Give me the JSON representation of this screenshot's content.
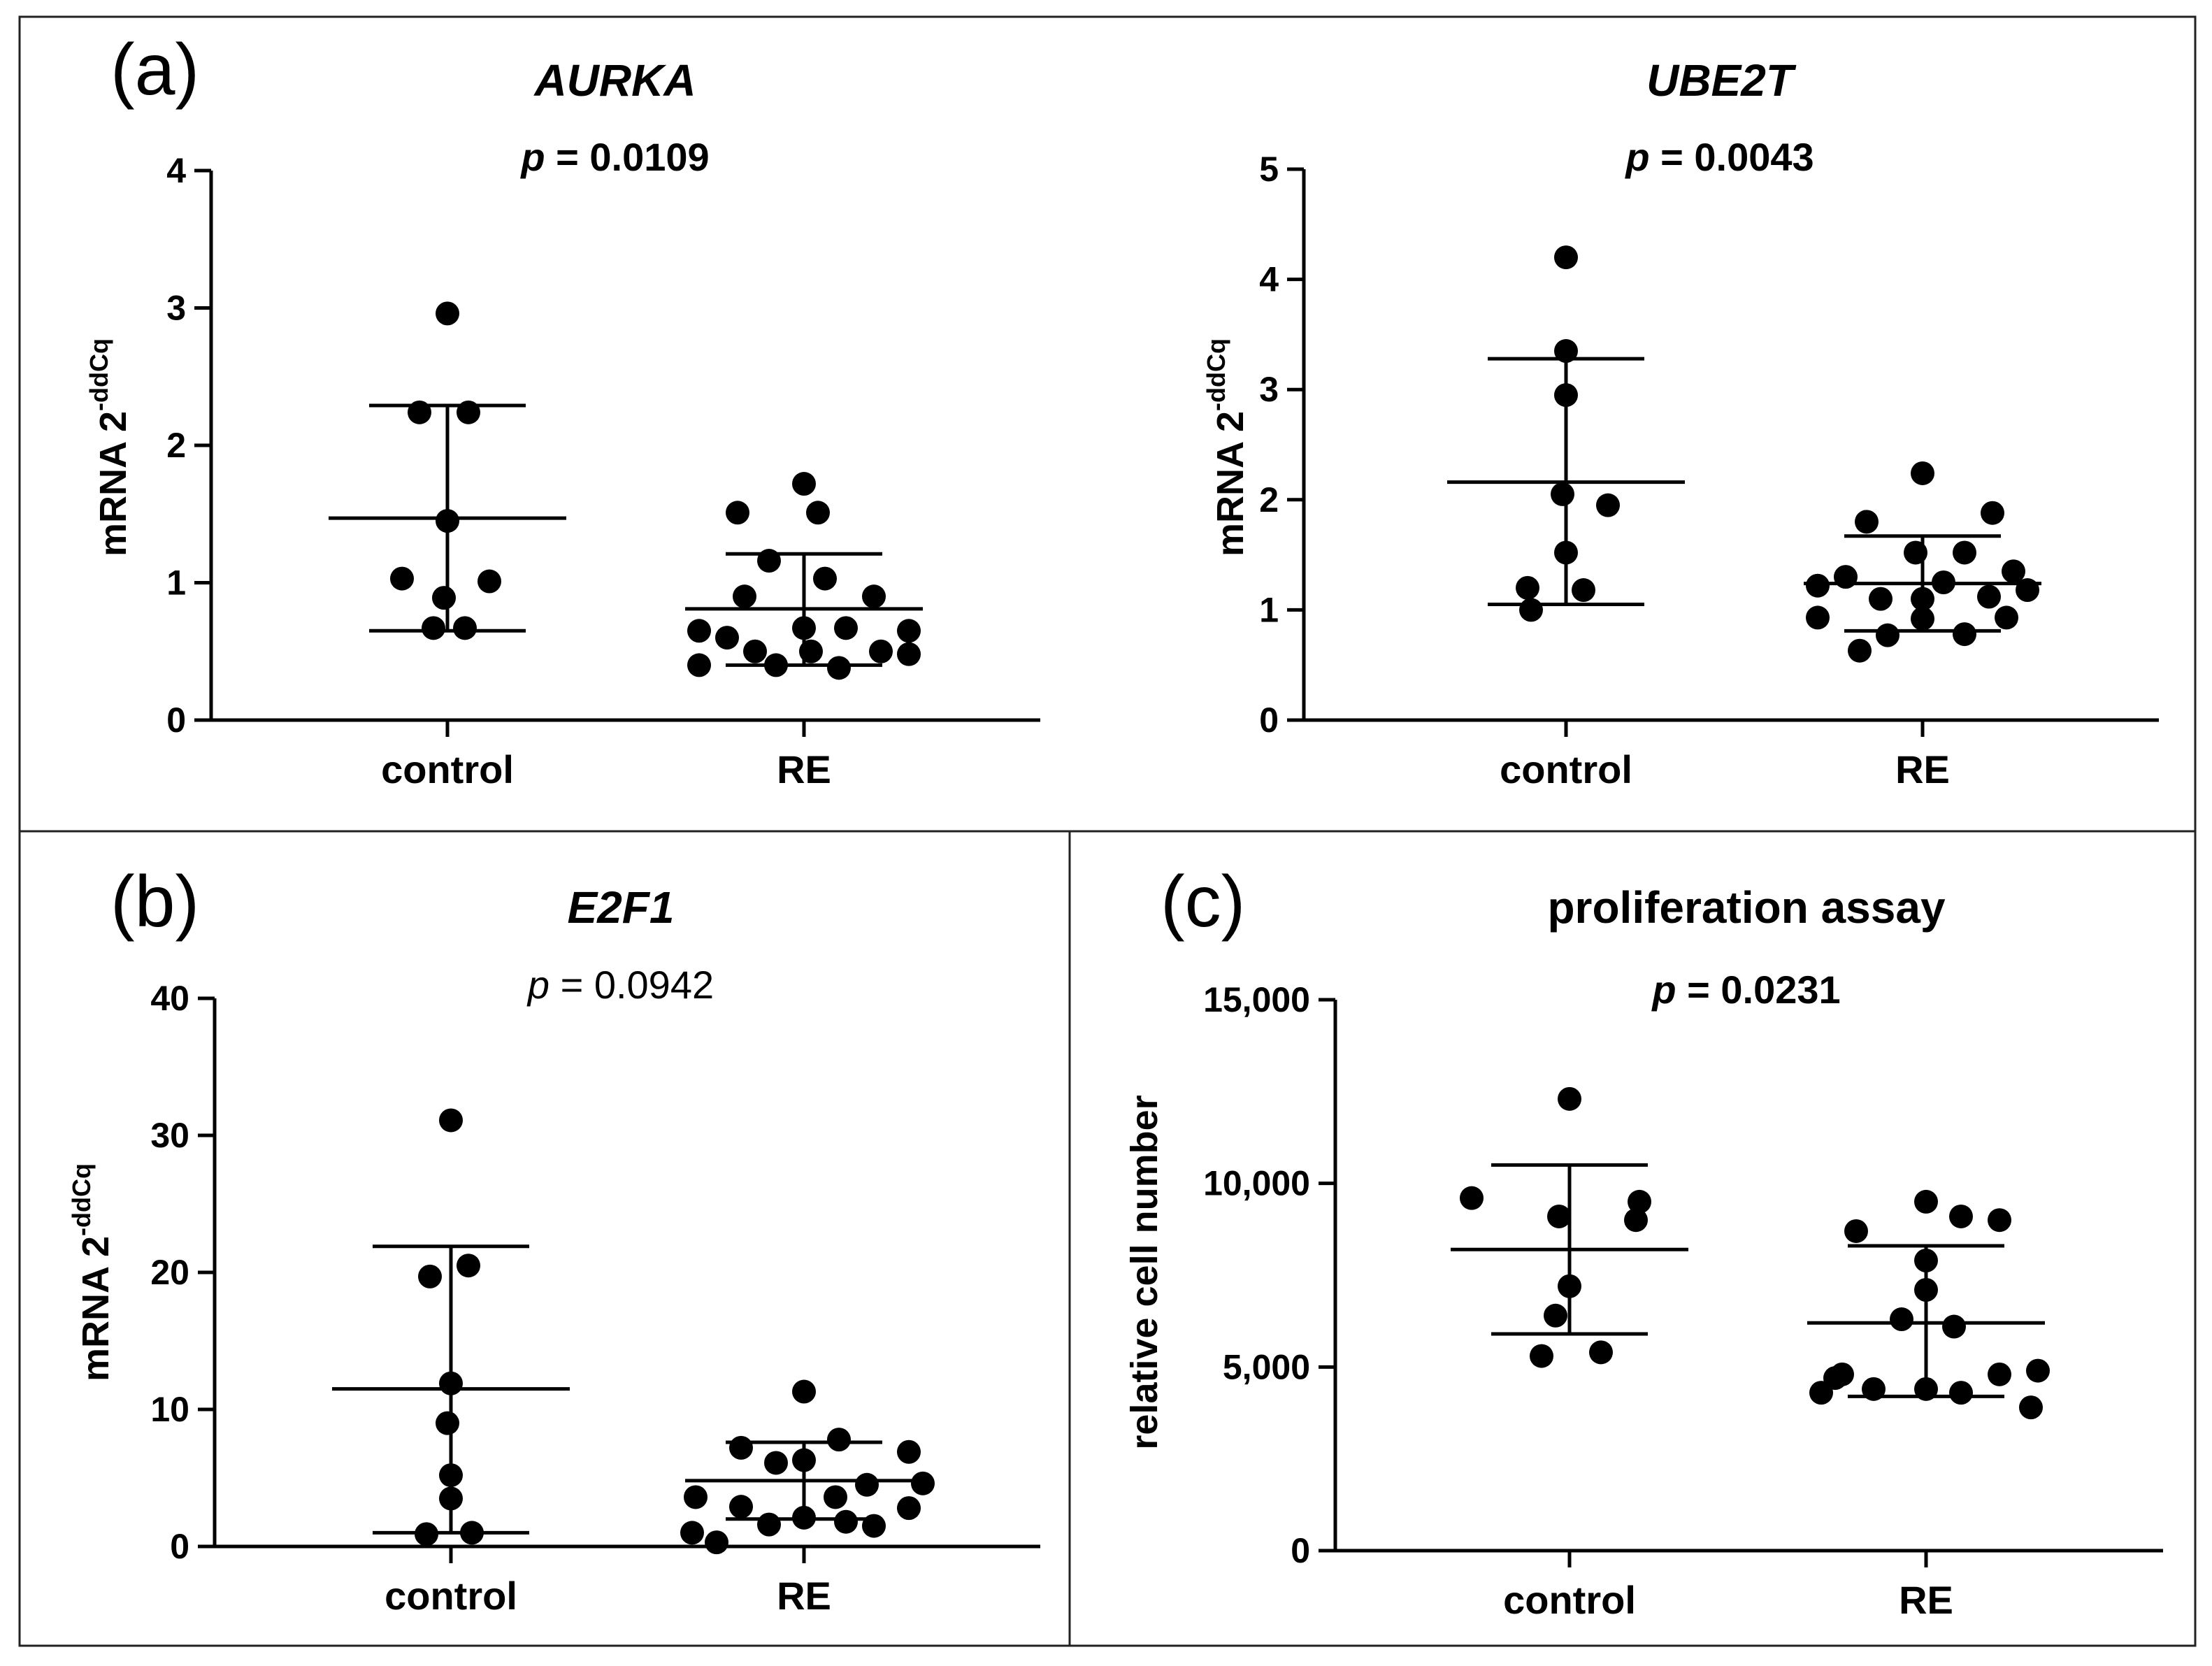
{
  "figure": {
    "panels": [
      {
        "label": "(a)"
      },
      {
        "label": "(b)"
      },
      {
        "label": "(c)"
      }
    ]
  },
  "chart_data": [
    {
      "type": "scatter",
      "panel": "(a)",
      "title": "AURKA",
      "title_italic": true,
      "p_label": "p",
      "p_text": " = 0.0109",
      "p_bold": true,
      "ylabel_base": "mRNA 2",
      "ylabel_sup": "-ddCq",
      "ylim": [
        0,
        4
      ],
      "yticks": [
        0,
        1,
        2,
        3,
        4
      ],
      "ytick_labels": [
        "0",
        "1",
        "2",
        "3",
        "4"
      ],
      "categories": [
        "control",
        "RE"
      ],
      "groups": [
        {
          "name": "control",
          "mean": 1.47,
          "sd_low": 0.65,
          "sd_high": 2.29,
          "points": [
            2.96,
            2.24,
            2.24,
            1.45,
            1.03,
            1.01,
            0.89,
            0.67,
            0.67
          ]
        },
        {
          "name": "RE",
          "mean": 0.81,
          "sd_low": 0.4,
          "sd_high": 1.21,
          "points": [
            1.72,
            1.51,
            1.51,
            1.16,
            1.03,
            0.9,
            0.9,
            0.67,
            0.67,
            0.65,
            0.65,
            0.6,
            0.5,
            0.5,
            0.5,
            0.48,
            0.4,
            0.4,
            0.38
          ]
        }
      ]
    },
    {
      "type": "scatter",
      "panel": "(a)",
      "title": "UBE2T",
      "title_italic": true,
      "p_label": "p",
      "p_text": " = 0.0043",
      "p_bold": true,
      "ylabel_base": "mRNA 2",
      "ylabel_sup": "-ddCq",
      "ylim": [
        0,
        5
      ],
      "yticks": [
        0,
        1,
        2,
        3,
        4,
        5
      ],
      "ytick_labels": [
        "0",
        "1",
        "2",
        "3",
        "4",
        "5"
      ],
      "categories": [
        "control",
        "RE"
      ],
      "groups": [
        {
          "name": "control",
          "mean": 2.16,
          "sd_low": 1.05,
          "sd_high": 3.28,
          "points": [
            4.2,
            3.35,
            2.95,
            2.05,
            1.95,
            1.52,
            1.2,
            1.18,
            1.0
          ]
        },
        {
          "name": "RE",
          "mean": 1.24,
          "sd_low": 0.81,
          "sd_high": 1.67,
          "points": [
            2.24,
            1.88,
            1.8,
            1.52,
            1.52,
            1.35,
            1.3,
            1.25,
            1.22,
            1.18,
            1.12,
            1.1,
            1.1,
            0.93,
            0.93,
            0.92,
            0.78,
            0.77,
            0.63
          ]
        }
      ]
    },
    {
      "type": "scatter",
      "panel": "(b)",
      "title": "E2F1",
      "title_italic": true,
      "p_label": "p",
      "p_text": " = 0.0942",
      "p_bold": false,
      "ylabel_base": "mRNA 2",
      "ylabel_sup": "-ddCq",
      "ylim": [
        0,
        40
      ],
      "yticks": [
        0,
        10,
        20,
        30,
        40
      ],
      "ytick_labels": [
        "0",
        "10",
        "20",
        "30",
        "40"
      ],
      "categories": [
        "control",
        "RE"
      ],
      "groups": [
        {
          "name": "control",
          "mean": 11.5,
          "sd_low": 1.0,
          "sd_high": 21.9,
          "points": [
            31.1,
            20.5,
            19.7,
            11.9,
            9.0,
            5.2,
            3.5,
            1.0,
            0.9
          ]
        },
        {
          "name": "RE",
          "mean": 4.8,
          "sd_low": 2.0,
          "sd_high": 7.6,
          "points": [
            11.3,
            7.8,
            7.2,
            6.9,
            6.3,
            6.1,
            4.6,
            4.5,
            3.6,
            3.6,
            2.9,
            2.8,
            2.1,
            1.8,
            1.6,
            1.5,
            1.0,
            0.3
          ]
        }
      ]
    },
    {
      "type": "scatter",
      "panel": "(c)",
      "title": "proliferation assay",
      "title_italic": false,
      "p_label": "p",
      "p_text": " = 0.0231",
      "p_bold": true,
      "ylabel_base": "relative cell number",
      "ylabel_sup": "",
      "ylim": [
        0,
        15000
      ],
      "yticks": [
        0,
        5000,
        10000,
        15000
      ],
      "ytick_labels": [
        "0",
        "5,000",
        "10,000",
        "15,000"
      ],
      "categories": [
        "control",
        "RE"
      ],
      "groups": [
        {
          "name": "control",
          "mean": 8200,
          "sd_low": 5900,
          "sd_high": 10500,
          "points": [
            12300,
            9600,
            9500,
            9100,
            9000,
            7200,
            6400,
            5400,
            5300
          ]
        },
        {
          "name": "RE",
          "mean": 6200,
          "sd_low": 4200,
          "sd_high": 8300,
          "points": [
            9500,
            9100,
            9000,
            8700,
            7900,
            7100,
            6300,
            6100,
            4900,
            4800,
            4800,
            4700,
            4400,
            4400,
            4300,
            4300,
            3900
          ]
        }
      ]
    }
  ]
}
